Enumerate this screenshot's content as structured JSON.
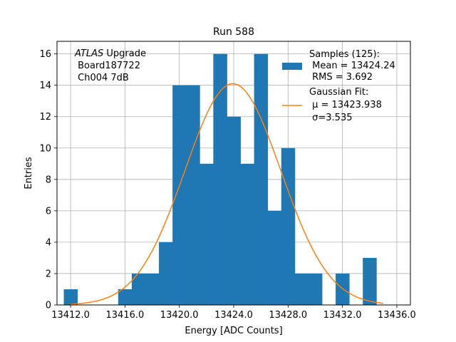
{
  "chart_data": {
    "type": "bar",
    "title": "Run 588",
    "xlabel": "Energy [ADC Counts]",
    "ylabel": "Entries",
    "xlim": [
      11.0,
      37.0
    ],
    "ylim": [
      0,
      16.8
    ],
    "x_ticks": [
      12,
      16,
      20,
      24,
      28,
      32,
      36
    ],
    "x_tick_labels": [
      "13412.0",
      "13416.0",
      "13420.0",
      "13424.0",
      "13428.0",
      "13432.0",
      "13436.0"
    ],
    "y_ticks": [
      0,
      2,
      4,
      6,
      8,
      10,
      12,
      14,
      16
    ],
    "y_tick_labels": [
      "0",
      "2",
      "4",
      "6",
      "8",
      "10",
      "12",
      "14",
      "16"
    ],
    "grid": true,
    "bin_width": 1.0,
    "bins": [
      {
        "x": 12.0,
        "count": 1
      },
      {
        "x": 16.0,
        "count": 1
      },
      {
        "x": 17.0,
        "count": 2
      },
      {
        "x": 18.0,
        "count": 2
      },
      {
        "x": 19.0,
        "count": 4
      },
      {
        "x": 20.0,
        "count": 14
      },
      {
        "x": 21.0,
        "count": 14
      },
      {
        "x": 22.0,
        "count": 9
      },
      {
        "x": 23.0,
        "count": 16
      },
      {
        "x": 24.0,
        "count": 12
      },
      {
        "x": 25.0,
        "count": 9
      },
      {
        "x": 26.0,
        "count": 16
      },
      {
        "x": 27.0,
        "count": 6
      },
      {
        "x": 28.0,
        "count": 10
      },
      {
        "x": 29.0,
        "count": 2
      },
      {
        "x": 30.0,
        "count": 2
      },
      {
        "x": 32.0,
        "count": 2
      },
      {
        "x": 34.0,
        "count": 3
      }
    ],
    "fit": {
      "mu": 23.938,
      "sigma": 3.535,
      "amplitude": 14.1,
      "x_range": [
        12.0,
        35.0
      ]
    },
    "series": [
      {
        "name": "Samples (125):",
        "color": "#1f77b4",
        "kind": "histogram"
      },
      {
        "name": "Gaussian Fit:",
        "color": "#ff7f0e",
        "kind": "line"
      }
    ],
    "legend": {
      "placement": "top-right",
      "hist_lines": [
        "Samples (125):",
        " Mean = 13424.24",
        " RMS = 3.692"
      ],
      "fit_lines": [
        "Gaussian Fit:",
        " μ = 13423.938",
        " σ=3.535"
      ]
    },
    "annotation": {
      "placement": "top-left",
      "italic_part": "ATLAS",
      "rest": " Upgrade",
      "lines": [
        " Board187722",
        " Ch004 7dB"
      ]
    }
  }
}
